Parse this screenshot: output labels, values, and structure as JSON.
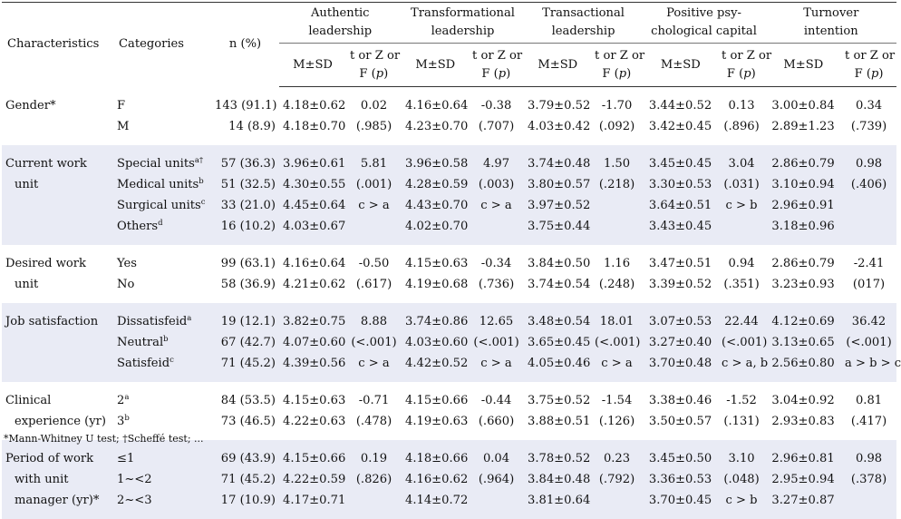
{
  "header": {
    "characteristics": "Characteristics",
    "categories": "Categories",
    "n_pct": "n (%)",
    "groups": [
      {
        "line1": "Authentic",
        "line2": "leadership"
      },
      {
        "line1": "Transformational",
        "line2": "leadership"
      },
      {
        "line1": "Transactional",
        "line2": "leadership"
      },
      {
        "line1": "Positive psy-",
        "line2": "chological capital"
      },
      {
        "line1": "Turnover",
        "line2": "intention"
      }
    ],
    "msd": "M±SD",
    "test_line1": "t or Z or",
    "test_line2_prefix": "F (",
    "test_line2_p": "p",
    "test_line2_suffix": ")"
  },
  "sections": [
    {
      "char_lines": [
        "Gender*"
      ],
      "stripe": false,
      "rows": [
        {
          "cat": "F",
          "sup": "",
          "n": "143 (91.1)",
          "cells": [
            "4.18±0.62",
            "0.02",
            "4.16±0.64",
            "-0.38",
            "3.79±0.52",
            "-1.70",
            "3.44±0.52",
            "0.13",
            "3.00±0.84",
            "0.34"
          ]
        },
        {
          "cat": "M",
          "sup": "",
          "n": "14 (8.9)",
          "cells": [
            "4.18±0.70",
            "(.985)",
            "4.23±0.70",
            "(.707)",
            "4.03±0.42",
            "(.092)",
            "3.42±0.45",
            "(.896)",
            "2.89±1.23",
            "(.739)"
          ]
        }
      ]
    },
    {
      "char_lines": [
        "Current work",
        "unit"
      ],
      "stripe": true,
      "rows": [
        {
          "cat": "Special units",
          "sup": "a†",
          "n": "57 (36.3)",
          "cells": [
            "3.96±0.61",
            "5.81",
            "3.96±0.58",
            "4.97",
            "3.74±0.48",
            "1.50",
            "3.45±0.45",
            "3.04",
            "2.86±0.79",
            "0.98"
          ]
        },
        {
          "cat": "Medical units",
          "sup": "b",
          "n": "51 (32.5)",
          "cells": [
            "4.30±0.55",
            "(.001)",
            "4.28±0.59",
            "(.003)",
            "3.80±0.57",
            "(.218)",
            "3.30±0.53",
            "(.031)",
            "3.10±0.94",
            "(.406)"
          ]
        },
        {
          "cat": "Surgical units",
          "sup": "c",
          "n": "33 (21.0)",
          "cells": [
            "4.45±0.64",
            "c > a",
            "4.43±0.70",
            "c > a",
            "3.97±0.52",
            "",
            "3.64±0.51",
            "c > b",
            "2.96±0.91",
            ""
          ]
        },
        {
          "cat": "Others",
          "sup": "d",
          "n": "16 (10.2)",
          "cells": [
            "4.03±0.67",
            "",
            "4.02±0.70",
            "",
            "3.75±0.44",
            "",
            "3.43±0.45",
            "",
            "3.18±0.96",
            ""
          ]
        }
      ]
    },
    {
      "char_lines": [
        "Desired work",
        "unit"
      ],
      "stripe": false,
      "rows": [
        {
          "cat": "Yes",
          "sup": "",
          "n": "99 (63.1)",
          "cells": [
            "4.16±0.64",
            "-0.50",
            "4.15±0.63",
            "-0.34",
            "3.84±0.50",
            "1.16",
            "3.47±0.51",
            "0.94",
            "2.86±0.79",
            "-2.41"
          ]
        },
        {
          "cat": "No",
          "sup": "",
          "n": "58 (36.9)",
          "cells": [
            "4.21±0.62",
            "(.617)",
            "4.19±0.68",
            "(.736)",
            "3.74±0.54",
            "(.248)",
            "3.39±0.52",
            "(.351)",
            "3.23±0.93",
            "(017)"
          ]
        }
      ]
    },
    {
      "char_lines": [
        "Job satisfaction"
      ],
      "stripe": true,
      "rows": [
        {
          "cat": "Dissatisfeid",
          "sup": "a",
          "n": "19 (12.1)",
          "cells": [
            "3.82±0.75",
            "8.88",
            "3.74±0.86",
            "12.65",
            "3.48±0.54",
            "18.01",
            "3.07±0.53",
            "22.44",
            "4.12±0.69",
            "36.42"
          ]
        },
        {
          "cat": "Neutral",
          "sup": "b",
          "n": "67 (42.7)",
          "cells": [
            "4.07±0.60",
            "(<.001)",
            "4.03±0.60",
            "(<.001)",
            "3.65±0.45",
            "(<.001)",
            "3.27±0.40",
            "(<.001)",
            "3.13±0.65",
            "(<.001)"
          ]
        },
        {
          "cat": "Satisfeid",
          "sup": "c",
          "n": "71 (45.2)",
          "cells": [
            "4.39±0.56",
            "c > a",
            "4.42±0.52",
            "c > a",
            "4.05±0.46",
            "c > a",
            "3.70±0.48",
            "c > a, b",
            "2.56±0.80",
            "a > b > c"
          ]
        }
      ]
    },
    {
      "char_lines": [
        "Clinical",
        "experience (yr)"
      ],
      "stripe": false,
      "rows": [
        {
          "cat": "2",
          "sup": "a",
          "n": "84 (53.5)",
          "cells": [
            "4.15±0.63",
            "-0.71",
            "4.15±0.66",
            "-0.44",
            "3.75±0.52",
            "-1.54",
            "3.38±0.46",
            "-1.52",
            "3.04±0.92",
            "0.81"
          ]
        },
        {
          "cat": "3",
          "sup": "b",
          "n": "73 (46.5)",
          "cells": [
            "4.22±0.63",
            "(.478)",
            "4.19±0.63",
            "(.660)",
            "3.88±0.51",
            "(.126)",
            "3.50±0.57",
            "(.131)",
            "2.93±0.83",
            "(.417)"
          ]
        }
      ]
    },
    {
      "char_lines": [
        "Period of work",
        "with unit",
        "manager (yr)*"
      ],
      "stripe": true,
      "rows": [
        {
          "cat": "≤1",
          "sup": "",
          "n": "69 (43.9)",
          "cells": [
            "4.15±0.66",
            "0.19",
            "4.18±0.66",
            "0.04",
            "3.78±0.52",
            "0.23",
            "3.45±0.50",
            "3.10",
            "2.96±0.81",
            "0.98"
          ]
        },
        {
          "cat": "1~<2",
          "sup": "",
          "n": "71 (45.2)",
          "cells": [
            "4.22±0.59",
            "(.826)",
            "4.16±0.62",
            "(.964)",
            "3.84±0.48",
            "(.792)",
            "3.36±0.53",
            "(.048)",
            "2.95±0.94",
            "(.378)"
          ]
        },
        {
          "cat": "2~<3",
          "sup": "",
          "n": "17 (10.9)",
          "cells": [
            "4.17±0.71",
            "",
            "4.14±0.72",
            "",
            "3.81±0.64",
            "",
            "3.70±0.45",
            "c > b",
            "3.27±0.87",
            ""
          ]
        }
      ]
    }
  ],
  "footnote": "*Mann-Whitney U test; †Scheffé test; ..."
}
